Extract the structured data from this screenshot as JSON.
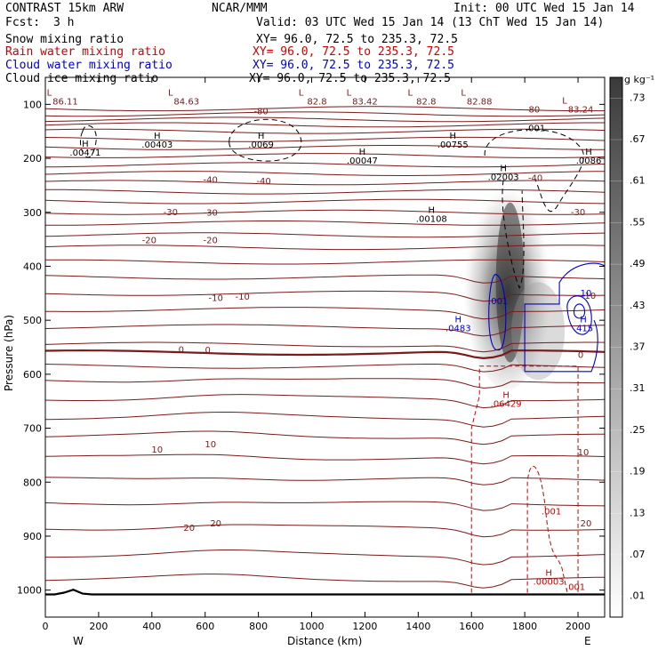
{
  "header": {
    "model": "CONTRAST 15km ARW",
    "org": "NCAR/MMM",
    "init": "Init: 00 UTC Wed 15 Jan 14",
    "fcst_label": "Fcst:",
    "fcst_value": "3 h",
    "valid": "Valid: 03 UTC Wed 15 Jan 14 (13 ChT Wed 15 Jan 14)"
  },
  "fields": [
    {
      "name": "Snow mixing ratio",
      "xy": "",
      "color": "#000000"
    },
    {
      "name": "Rain water mixing ratio",
      "xy": "XY=  96.0, 72.5 to 235.3, 72.5",
      "color": "#cc0000"
    },
    {
      "name": "Cloud water mixing ratio",
      "xy": "XY=  96.0, 72.5 to 235.3, 72.5",
      "color": "#0000cc"
    },
    {
      "name": "Cloud ice mixing ratio",
      "xy": "XY=  96.0, 72.5 to 235.3, 72.5",
      "color": "#000000"
    }
  ],
  "snow_xy": "XY=   96.0, 72.5 to 235.3, 72.5",
  "chart_data": {
    "type": "contour-cross-section",
    "xlabel": "Distance (km)",
    "ylabel": "Pressure (hPa)",
    "xlim": [
      0,
      2100
    ],
    "ylim": [
      1050,
      50
    ],
    "xticks": [
      0,
      200,
      400,
      600,
      800,
      1000,
      1200,
      1400,
      1600,
      1800,
      2000
    ],
    "yticks": [
      100,
      200,
      300,
      400,
      500,
      600,
      700,
      800,
      900,
      1000
    ],
    "x_end_labels": {
      "left": "W",
      "right": "E"
    },
    "colorbar": {
      "unit": "g kg⁻¹",
      "levels": [
        ".01",
        ".07",
        ".13",
        ".19",
        ".25",
        ".31",
        ".37",
        ".43",
        ".49",
        ".55",
        ".61",
        ".67",
        ".73"
      ]
    },
    "temperature_isotherm_labels": [
      {
        "text": "-80",
        "x": 810,
        "p": 118
      },
      {
        "text": "-80",
        "x": 1830,
        "p": 115
      },
      {
        "text": "-40",
        "x": 620,
        "p": 245
      },
      {
        "text": "-40",
        "x": 820,
        "p": 248
      },
      {
        "text": "-40",
        "x": 1840,
        "p": 242
      },
      {
        "text": "-30",
        "x": 470,
        "p": 305
      },
      {
        "text": "-30",
        "x": 620,
        "p": 306
      },
      {
        "text": "-30",
        "x": 2000,
        "p": 305
      },
      {
        "text": "-20",
        "x": 390,
        "p": 357
      },
      {
        "text": "-20",
        "x": 620,
        "p": 357
      },
      {
        "text": "-10",
        "x": 640,
        "p": 464
      },
      {
        "text": "-10",
        "x": 740,
        "p": 462
      },
      {
        "text": "-10",
        "x": 2040,
        "p": 460
      },
      {
        "text": "0",
        "x": 510,
        "p": 560
      },
      {
        "text": "0",
        "x": 610,
        "p": 561
      },
      {
        "text": "0",
        "x": 2010,
        "p": 570
      },
      {
        "text": "10",
        "x": 420,
        "p": 745
      },
      {
        "text": "10",
        "x": 620,
        "p": 735
      },
      {
        "text": "10",
        "x": 2020,
        "p": 750
      },
      {
        "text": "20",
        "x": 540,
        "p": 890
      },
      {
        "text": "20",
        "x": 640,
        "p": 882
      },
      {
        "text": "20",
        "x": 2030,
        "p": 882
      }
    ],
    "temperature_low_labels": [
      {
        "text": "86.11",
        "x": 75,
        "p": 100
      },
      {
        "text": "84.63",
        "x": 530,
        "p": 100
      },
      {
        "text": "82.8",
        "x": 1020,
        "p": 100
      },
      {
        "text": "83.42",
        "x": 1200,
        "p": 100
      },
      {
        "text": "82.8",
        "x": 1430,
        "p": 100
      },
      {
        "text": "82.88",
        "x": 1630,
        "p": 100
      },
      {
        "text": "83.24",
        "x": 2010,
        "p": 115
      }
    ],
    "ice_maxima": [
      {
        "text": ".00471",
        "x": 150,
        "p": 195
      },
      {
        "text": ".00403",
        "x": 420,
        "p": 180
      },
      {
        "text": ".0069",
        "x": 810,
        "p": 180
      },
      {
        "text": ".00047",
        "x": 1190,
        "p": 210
      },
      {
        "text": ".00755",
        "x": 1530,
        "p": 180
      },
      {
        "text": ".02003",
        "x": 1720,
        "p": 240
      },
      {
        "text": ".0086",
        "x": 2040,
        "p": 210
      },
      {
        "text": ".00108",
        "x": 1450,
        "p": 318
      }
    ],
    "ice_contour_label": {
      "text": ".001",
      "x": 1840,
      "p": 150
    },
    "cloud_water_maxima": [
      {
        "text": ".0483",
        "x": 1550,
        "p": 520
      },
      {
        "text": ".415",
        "x": 2020,
        "p": 520
      }
    ],
    "cloud_water_contour_labels": [
      {
        "text": ".001",
        "x": 1700,
        "p": 470
      },
      {
        "text": "10",
        "x": 2030,
        "p": 455
      }
    ],
    "rain_maxima": [
      {
        "text": ".06429",
        "x": 1730,
        "p": 660
      },
      {
        "text": ".00003",
        "x": 1890,
        "p": 990
      }
    ],
    "rain_contour_labels": [
      {
        "text": ".001",
        "x": 1900,
        "p": 860
      },
      {
        "text": ".001",
        "x": 1990,
        "p": 1000
      }
    ]
  }
}
